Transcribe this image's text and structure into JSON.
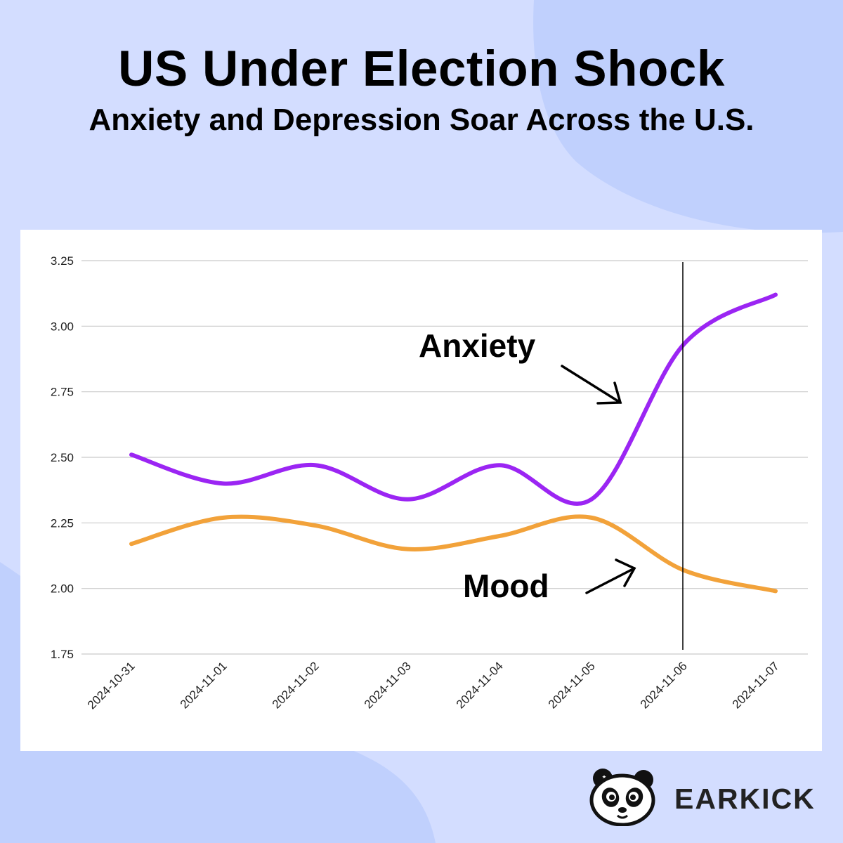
{
  "header": {
    "title": "US Under Election Shock",
    "subtitle": "Anxiety and Depression Soar Across the U.S."
  },
  "brand": {
    "name": "EARKICK"
  },
  "annotations": {
    "anxiety": "Anxiety",
    "mood": "Mood"
  },
  "colors": {
    "anxiety": "#9b25f3",
    "mood": "#f2a23a",
    "background": "#d3ddff",
    "background_shape": "#c0d0fd",
    "event_line": "#000000"
  },
  "chart_data": {
    "type": "line",
    "title": "",
    "xlabel": "",
    "ylabel": "",
    "categories": [
      "2024-10-31",
      "2024-11-01",
      "2024-11-02",
      "2024-11-03",
      "2024-11-04",
      "2024-11-05",
      "2024-11-06",
      "2024-11-07"
    ],
    "series": [
      {
        "name": "Anxiety",
        "values": [
          2.51,
          2.4,
          2.47,
          2.34,
          2.47,
          2.34,
          2.93,
          3.12
        ]
      },
      {
        "name": "Mood",
        "values": [
          2.17,
          2.27,
          2.24,
          2.15,
          2.2,
          2.27,
          2.07,
          1.99
        ]
      }
    ],
    "yticks": [
      "1.75",
      "2.00",
      "2.25",
      "2.50",
      "2.75",
      "3.00",
      "3.25"
    ],
    "ylim": [
      1.75,
      3.25
    ],
    "event_marker_x": "2024-11-06",
    "grid": true,
    "legend": "none"
  }
}
